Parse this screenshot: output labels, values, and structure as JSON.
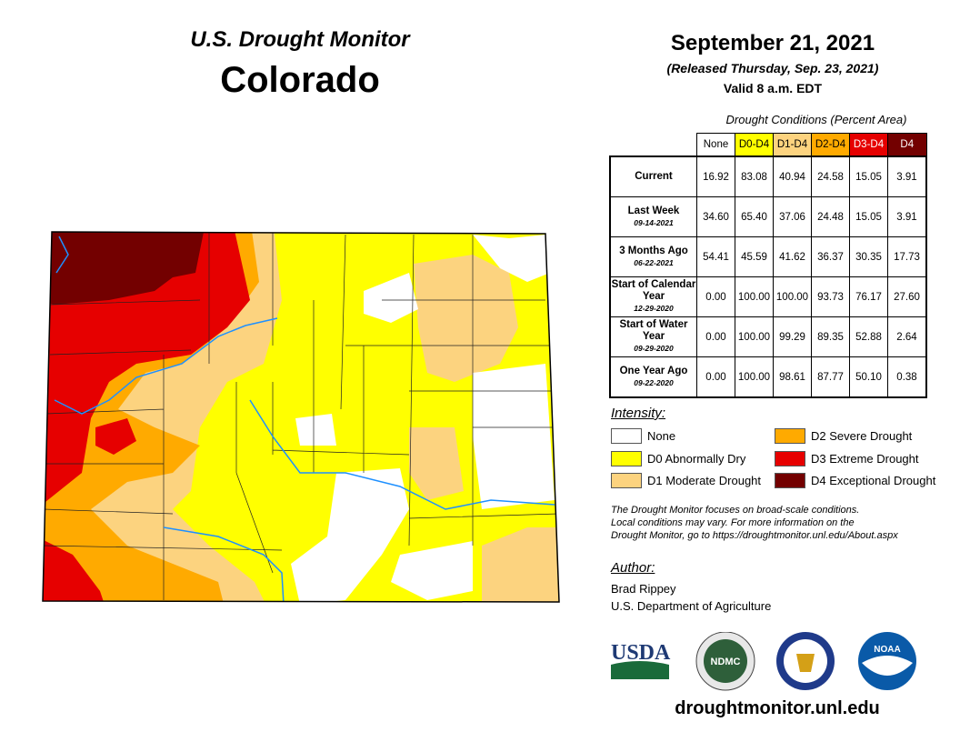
{
  "title": "U.S. Drought Monitor",
  "state": "Colorado",
  "date": "September 21, 2021",
  "released": "(Released Thursday, Sep. 23, 2021)",
  "valid": "Valid 8 a.m. EDT",
  "table": {
    "caption": "Drought Conditions (Percent Area)",
    "columns": [
      {
        "label": "None",
        "bg": "#ffffff",
        "fg": "#000"
      },
      {
        "label": "D0-D4",
        "bg": "#ffff00",
        "fg": "#000"
      },
      {
        "label": "D1-D4",
        "bg": "#fcd37f",
        "fg": "#000"
      },
      {
        "label": "D2-D4",
        "bg": "#ffaa00",
        "fg": "#000"
      },
      {
        "label": "D3-D4",
        "bg": "#e60000",
        "fg": "#fff"
      },
      {
        "label": "D4",
        "bg": "#730000",
        "fg": "#fff"
      }
    ],
    "rows": [
      {
        "label": "Current",
        "date": "",
        "values": [
          "16.92",
          "83.08",
          "40.94",
          "24.58",
          "15.05",
          "3.91"
        ]
      },
      {
        "label": "Last Week",
        "date": "09-14-2021",
        "values": [
          "34.60",
          "65.40",
          "37.06",
          "24.48",
          "15.05",
          "3.91"
        ]
      },
      {
        "label": "3 Months Ago",
        "date": "06-22-2021",
        "values": [
          "54.41",
          "45.59",
          "41.62",
          "36.37",
          "30.35",
          "17.73"
        ]
      },
      {
        "label": "Start of Calendar Year",
        "date": "12-29-2020",
        "values": [
          "0.00",
          "100.00",
          "100.00",
          "93.73",
          "76.17",
          "27.60"
        ]
      },
      {
        "label": "Start of Water Year",
        "date": "09-29-2020",
        "values": [
          "0.00",
          "100.00",
          "99.29",
          "89.35",
          "52.88",
          "2.64"
        ]
      },
      {
        "label": "One Year Ago",
        "date": "09-22-2020",
        "values": [
          "0.00",
          "100.00",
          "98.61",
          "87.77",
          "50.10",
          "0.38"
        ]
      }
    ]
  },
  "intensity": {
    "title": "Intensity:",
    "items": [
      {
        "label": "None",
        "color": "#ffffff"
      },
      {
        "label": "D0 Abnormally Dry",
        "color": "#ffff00"
      },
      {
        "label": "D1 Moderate Drought",
        "color": "#fcd37f"
      },
      {
        "label": "D2 Severe Drought",
        "color": "#ffaa00"
      },
      {
        "label": "D3 Extreme Drought",
        "color": "#e60000"
      },
      {
        "label": "D4 Exceptional Drought",
        "color": "#730000"
      }
    ]
  },
  "note": [
    "The Drought Monitor focuses on broad-scale conditions.",
    "Local conditions may vary. For more information on the",
    "Drought Monitor, go to https://droughtmonitor.unl.edu/About.aspx"
  ],
  "author": {
    "title": "Author:",
    "name": "Brad Rippey",
    "org": "U.S. Department of Agriculture"
  },
  "logos": {
    "usda": "USDA",
    "ndmc": "NDMC",
    "noaa": "NOAA"
  },
  "url": "droughtmonitor.unl.edu"
}
